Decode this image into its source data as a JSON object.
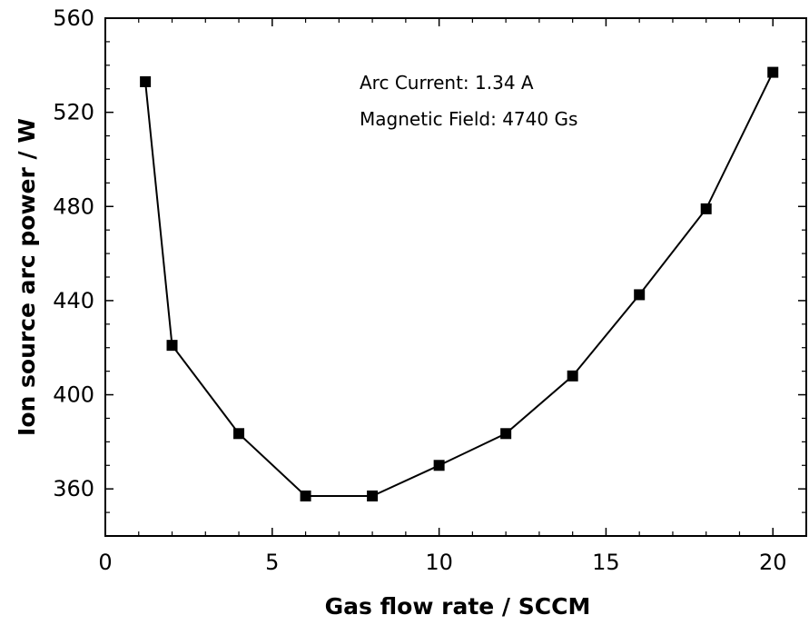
{
  "chart_data": {
    "type": "line",
    "title": "",
    "xlabel": "Gas flow rate / SCCM",
    "ylabel": "Ion source arc power / W",
    "xlim": [
      0,
      21
    ],
    "ylim": [
      340,
      560
    ],
    "xticks": [
      0,
      5,
      10,
      15,
      20
    ],
    "yticks": [
      360,
      400,
      440,
      480,
      520,
      560
    ],
    "xtick_labels": [
      "0",
      "5",
      "10",
      "15",
      "20"
    ],
    "ytick_labels": [
      "360",
      "400",
      "440",
      "480",
      "520",
      "560"
    ],
    "grid": false,
    "legend": "none",
    "marker": "square",
    "color": "#000000",
    "series": [
      {
        "x": [
          1.2,
          2,
          4,
          6,
          8,
          10,
          12,
          14,
          16,
          18,
          20
        ],
        "y": [
          533,
          421,
          383.5,
          357,
          357,
          370,
          383.5,
          408,
          442.5,
          479,
          537
        ]
      }
    ],
    "annotations": [
      "Arc Current: 1.34 A",
      "Magnetic Field: 4740 Gs"
    ]
  }
}
